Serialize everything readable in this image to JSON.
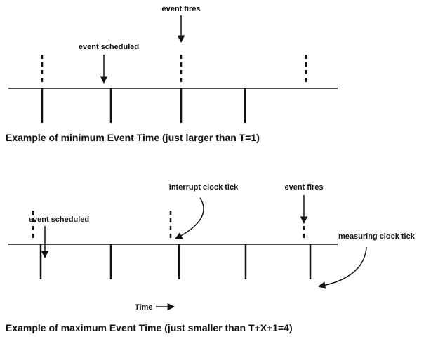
{
  "top": {
    "event_fires": "event fires",
    "event_scheduled": "event scheduled",
    "caption": "Example of minimum Event Time (just larger than T=1)"
  },
  "bottom": {
    "interrupt_clock_tick": "interrupt clock tick",
    "event_fires": "event fires",
    "event_scheduled": "event scheduled",
    "measuring_clock_tick": "measuring clock tick",
    "time": "Time",
    "caption": "Example of maximum Event Time (just smaller than T+X+1=4)"
  }
}
